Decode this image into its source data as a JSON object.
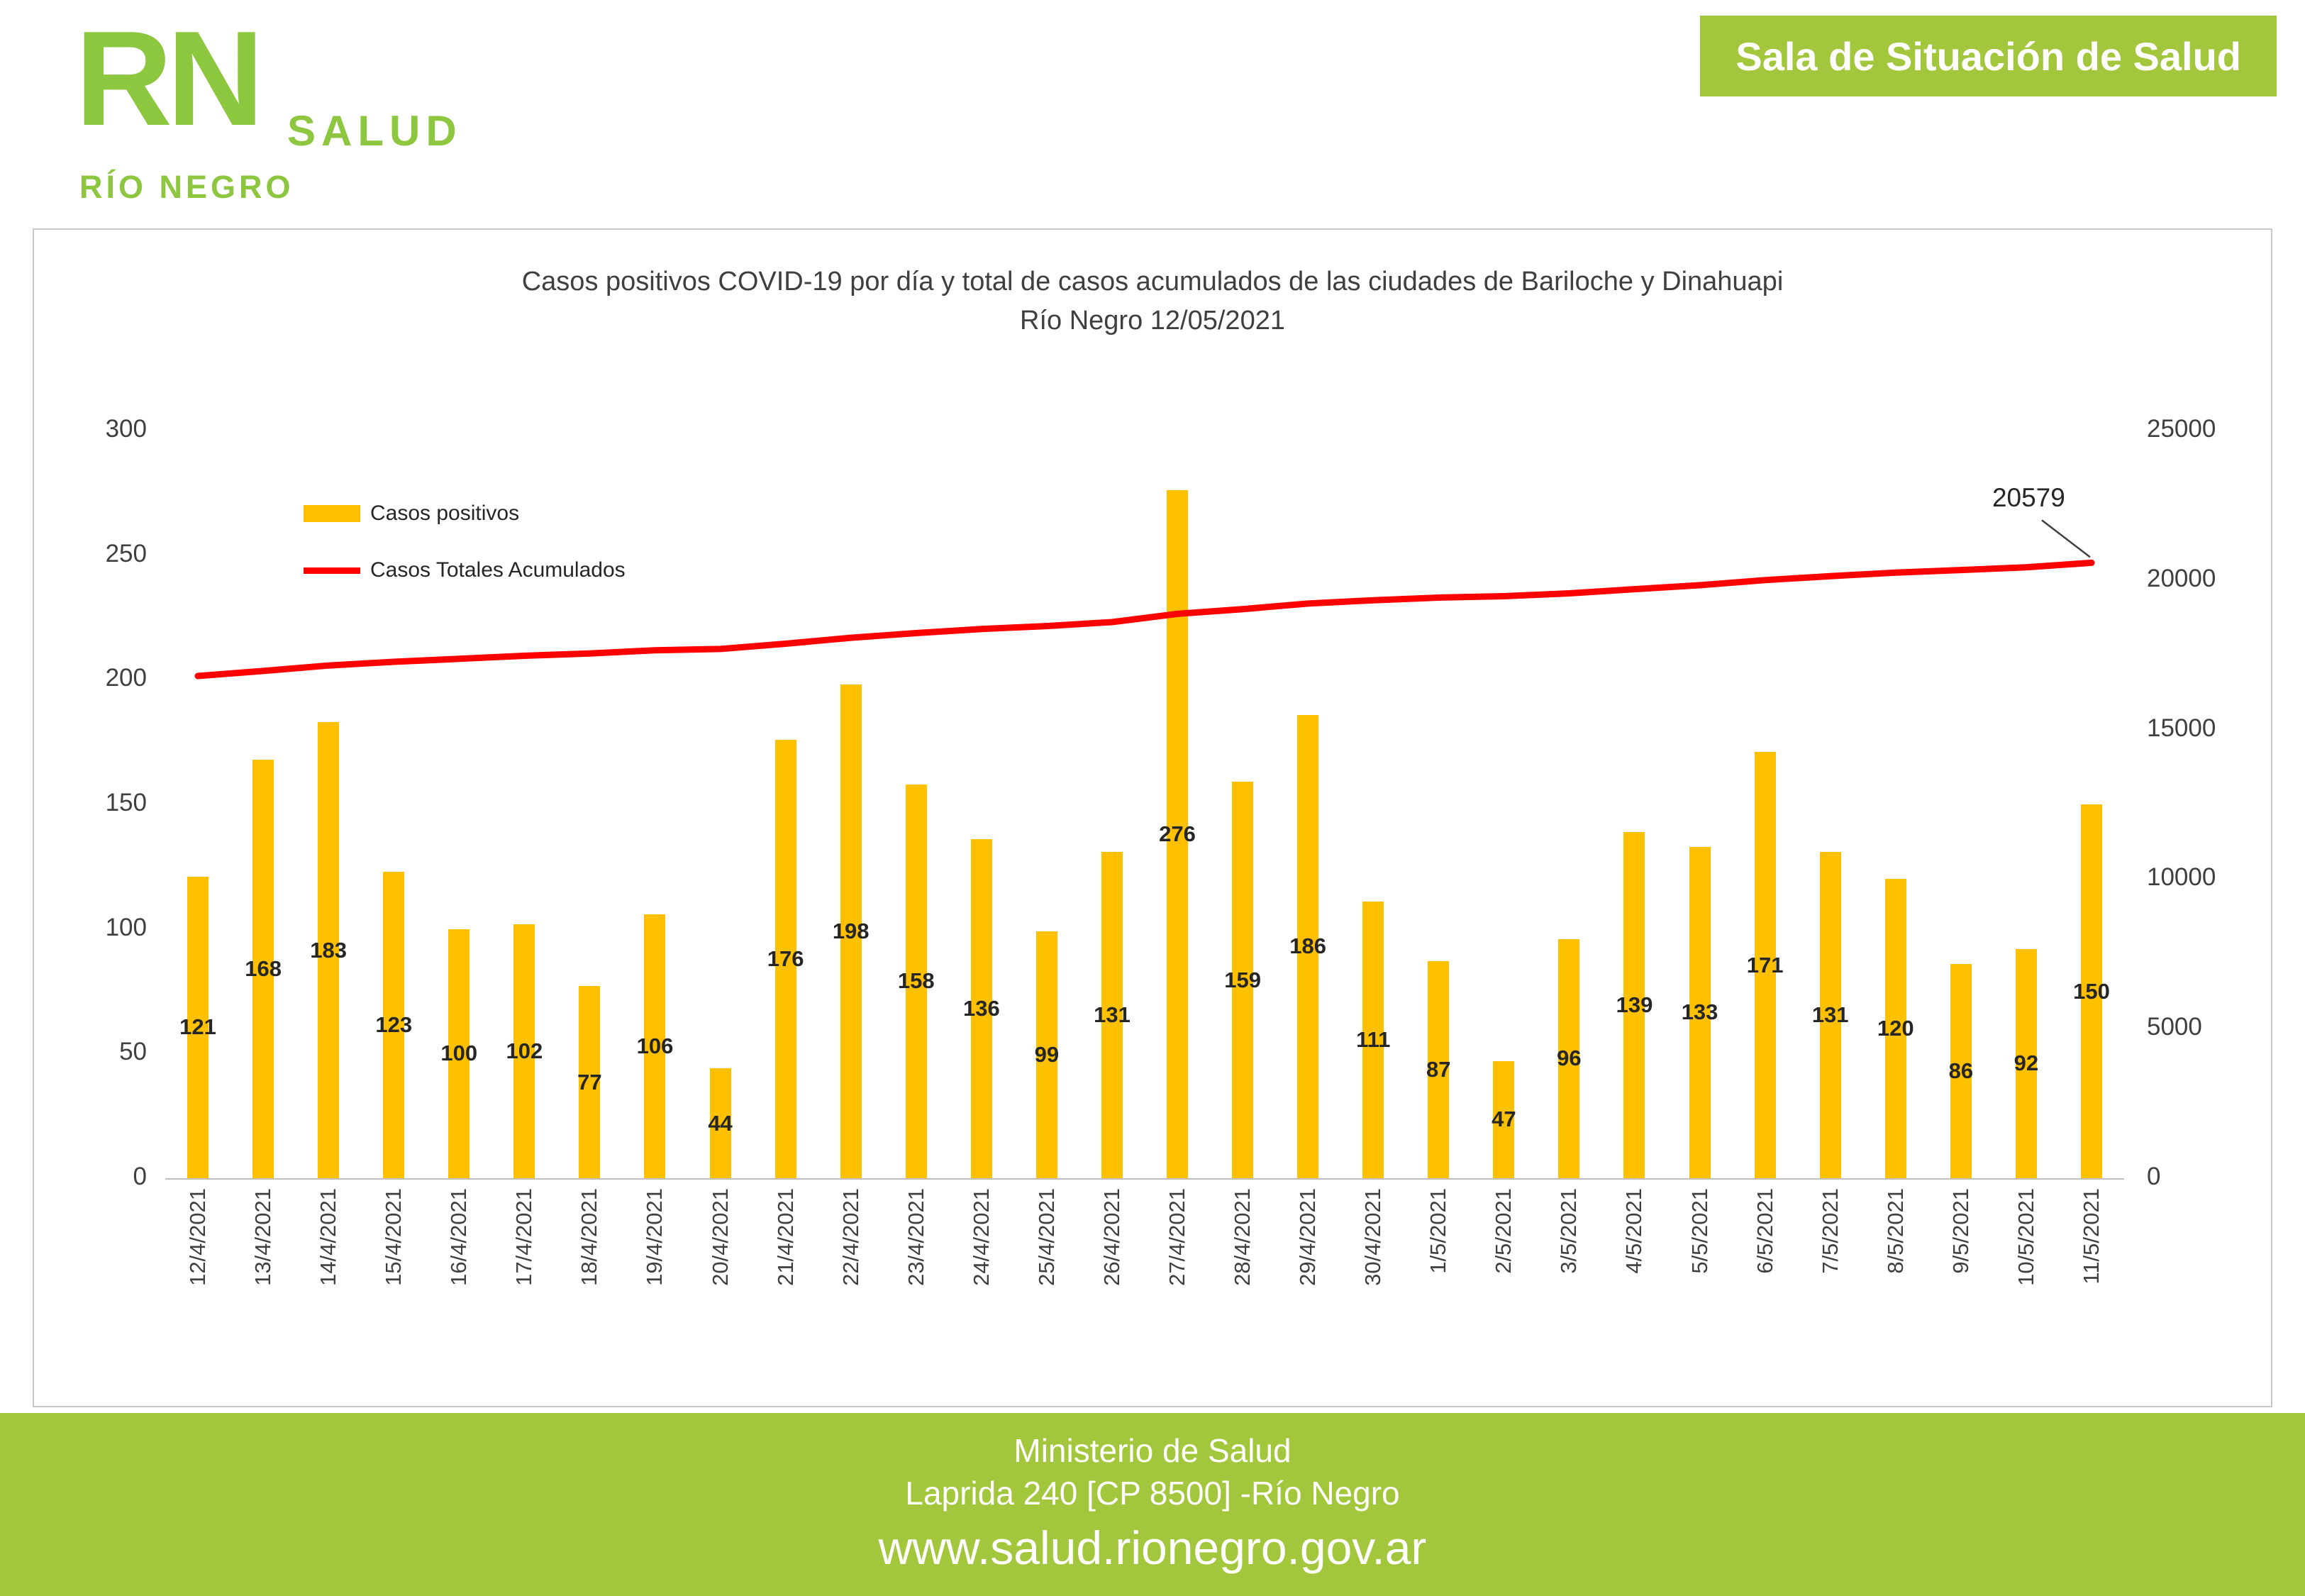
{
  "header": {
    "logo": {
      "rn": "RN",
      "salud": "SALUD",
      "rio_negro": "RÍO NEGRO"
    },
    "banner": "Sala de Situación de Salud"
  },
  "chart_data": {
    "type": "bar",
    "title_line1": "Casos positivos COVID-19 por día y total de casos acumulados de las ciudades de Bariloche y Dinahuapi",
    "title_line2": "Río Negro 12/05/2021",
    "categories": [
      "12/4/2021",
      "13/4/2021",
      "14/4/2021",
      "15/4/2021",
      "16/4/2021",
      "17/4/2021",
      "18/4/2021",
      "19/4/2021",
      "20/4/2021",
      "21/4/2021",
      "22/4/2021",
      "23/4/2021",
      "24/4/2021",
      "25/4/2021",
      "26/4/2021",
      "27/4/2021",
      "28/4/2021",
      "29/4/2021",
      "30/4/2021",
      "1/5/2021",
      "2/5/2021",
      "3/5/2021",
      "4/5/2021",
      "5/5/2021",
      "6/5/2021",
      "7/5/2021",
      "8/5/2021",
      "9/5/2021",
      "10/5/2021",
      "11/5/2021"
    ],
    "series": [
      {
        "name": "Casos positivos",
        "type": "bar",
        "axis": "left",
        "color": "#FFC000",
        "values": [
          121,
          168,
          183,
          123,
          100,
          102,
          77,
          106,
          44,
          176,
          198,
          158,
          136,
          99,
          131,
          276,
          159,
          186,
          111,
          87,
          47,
          96,
          139,
          133,
          171,
          131,
          120,
          86,
          92,
          150
        ]
      },
      {
        "name": "Casos Totales Acumulados",
        "type": "line",
        "axis": "right",
        "color": "#FF0000",
        "values_estimated": true,
        "values": [
          16794,
          16962,
          17145,
          17268,
          17368,
          17470,
          17547,
          17653,
          17697,
          17873,
          18071,
          18229,
          18365,
          18464,
          18595,
          18871,
          19030,
          19216,
          19327,
          19414,
          19461,
          19557,
          19696,
          19829,
          20000,
          20131,
          20251,
          20337,
          20429,
          20579
        ]
      }
    ],
    "left_axis": {
      "min": 0,
      "max": 300,
      "ticks": [
        0,
        50,
        100,
        150,
        200,
        250,
        300
      ]
    },
    "right_axis": {
      "min": 0,
      "max": 25000,
      "ticks": [
        0,
        5000,
        10000,
        15000,
        20000,
        25000
      ]
    },
    "annotation": {
      "text": "20579",
      "index": 29
    },
    "legend_position": "top-left",
    "grid": false,
    "xlabel": "",
    "ylabel": ""
  },
  "footer": {
    "line1": "Ministerio de Salud",
    "line2": "Laprida 240 [CP 8500] -Río Negro",
    "line3": "www.salud.rionegro.gov.ar"
  },
  "colors": {
    "brand_green": "#A3C73C",
    "logo_green": "#8DC63F",
    "bar": "#FFC000",
    "line": "#FF0000"
  }
}
